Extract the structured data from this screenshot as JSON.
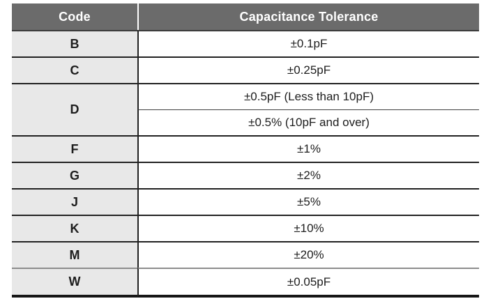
{
  "table": {
    "header": {
      "code": "Code",
      "tolerance": "Capacitance Tolerance"
    },
    "rows": [
      {
        "code": "B",
        "tolerance": "±0.1pF"
      },
      {
        "code": "C",
        "tolerance": "±0.25pF"
      },
      {
        "code": "D",
        "tolerance": "±0.5pF (Less than 10pF)",
        "tolerance2": "±0.5% (10pF and over)"
      },
      {
        "code": "F",
        "tolerance": "±1%"
      },
      {
        "code": "G",
        "tolerance": "±2%"
      },
      {
        "code": "J",
        "tolerance": "±5%"
      },
      {
        "code": "K",
        "tolerance": "±10%"
      },
      {
        "code": "M",
        "tolerance": "±20%"
      },
      {
        "code": "W",
        "tolerance": "±0.05pF"
      }
    ]
  },
  "colors": {
    "header_bg": "#6b6b6b",
    "header_text": "#ffffff",
    "code_column_bg": "#e8e8e8",
    "body_bg": "#ffffff",
    "text": "#1d1d1d",
    "divider": "#212121",
    "light_divider": "#8c8c8c",
    "bottom_border": "#161616"
  }
}
